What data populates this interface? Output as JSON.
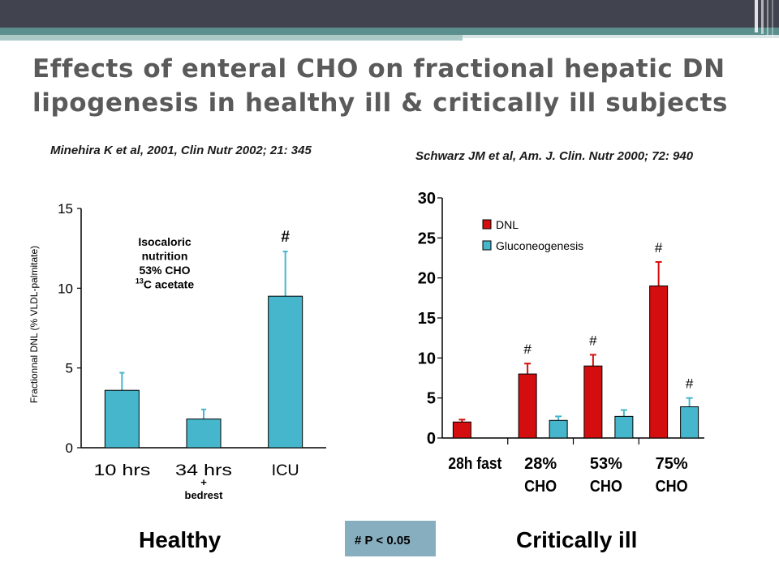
{
  "slide": {
    "title_line1": "Effects of enteral CHO on fractional hepatic DN",
    "title_line2": "lipogenesis in healthy ill & critically ill subjects",
    "left_citation": "Minehira K et al, 2001, Clin Nutr 2002; 21: 345",
    "right_citation": "Schwarz JM et al, Am. J. Clin. Nutr 2000; 72: 940",
    "left_label": "Healthy",
    "right_label": "Critically ill",
    "significance_note": "# P < 0.05"
  },
  "chart_data": [
    {
      "type": "bar",
      "ylabel": "Fractionnal DNL (% VLDL-palmitate)",
      "ylim": [
        0,
        15
      ],
      "yticks": [
        "0",
        "5",
        "10",
        "15"
      ],
      "categories": [
        "10 hrs",
        "34 hrs",
        "ICU"
      ],
      "category_sub": [
        "",
        "+ bedrest",
        ""
      ],
      "values": [
        3.6,
        1.8,
        9.5
      ],
      "errors": [
        1.1,
        0.6,
        2.8
      ],
      "significance": [
        "",
        "",
        "#"
      ],
      "annotation": [
        "Isocaloric",
        "nutrition",
        "53% CHO",
        "13C acetate"
      ],
      "color": "#45b6cc",
      "grid": false
    },
    {
      "type": "bar",
      "ylim": [
        0,
        30
      ],
      "yticks": [
        "0",
        "5",
        "10",
        "15",
        "20",
        "25",
        "30"
      ],
      "categories": [
        "28h fast",
        "28% CHO",
        "53% CHO",
        "75% CHO"
      ],
      "legend_position": "top-left",
      "series": [
        {
          "name": "DNL",
          "color": "#d40e0e",
          "values": [
            2.0,
            8.0,
            9.0,
            19.0
          ],
          "errors": [
            0.3,
            1.3,
            1.4,
            3.0
          ],
          "significance": [
            "",
            "#",
            "#",
            "#"
          ]
        },
        {
          "name": "Gluconeogenesis",
          "color": "#45b6cc",
          "values": [
            0,
            2.2,
            2.7,
            3.9
          ],
          "errors": [
            0,
            0.5,
            0.8,
            1.1
          ],
          "significance": [
            "",
            "",
            "",
            "#"
          ]
        }
      ],
      "grid": false
    }
  ]
}
